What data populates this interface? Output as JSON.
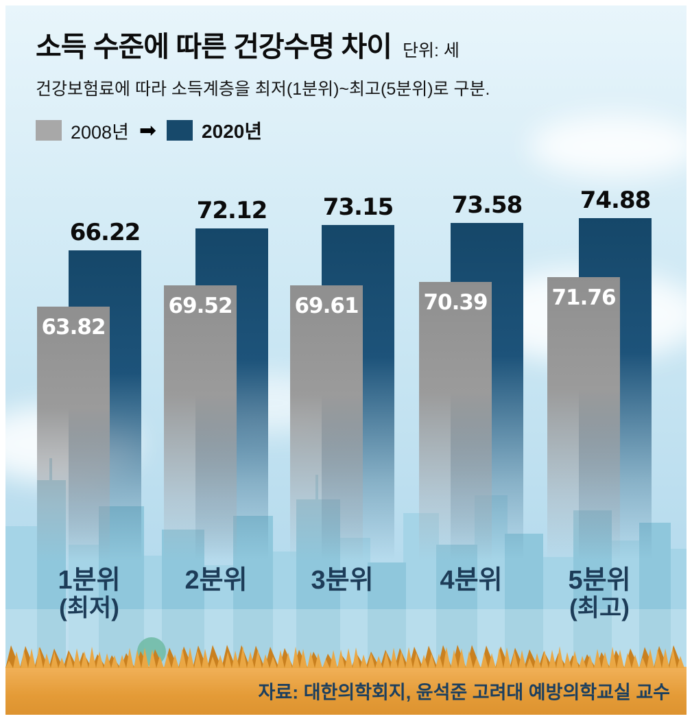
{
  "chart_data": {
    "type": "bar",
    "title": "소득 수준에 따른 건강수명 차이",
    "unit_label": "단위: 세",
    "subtitle": "건강보험료에 따라 소득계층을 최저(1분위)~최고(5분위)로 구분.",
    "legend_position": "top-left",
    "grid": false,
    "ylim": [
      0,
      80
    ],
    "categories": [
      {
        "label": "1분위",
        "sub": "(최저)"
      },
      {
        "label": "2분위",
        "sub": ""
      },
      {
        "label": "3분위",
        "sub": ""
      },
      {
        "label": "4분위",
        "sub": ""
      },
      {
        "label": "5분위",
        "sub": "(최고)"
      }
    ],
    "series": [
      {
        "name": "2008년",
        "color": "#9a9a9a",
        "values": [
          63.82,
          69.52,
          69.61,
          70.39,
          71.76
        ]
      },
      {
        "name": "2020년",
        "color": "#17496b",
        "values": [
          66.22,
          72.12,
          73.15,
          73.58,
          74.88
        ]
      }
    ],
    "source": "자료: 대한의학회지, 윤석준 고려대 예방의학교실 교수"
  },
  "icons": {
    "legend_arrow": "➡"
  },
  "colors": {
    "bar_2008": "#9a9a9a",
    "bar_2020": "#17496b",
    "category_label": "#1d3c58",
    "ground_top": "#f1b159",
    "ground_bottom": "#dd9330",
    "sky_top": "#e8f5fb",
    "sky_bottom": "#a8d3e9",
    "skyline": "#a5d4e7"
  }
}
